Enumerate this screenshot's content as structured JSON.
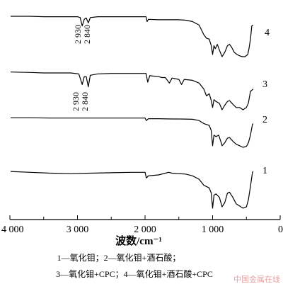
{
  "chart_data": {
    "type": "line",
    "title": "",
    "xlabel": "波数/cm⁻¹",
    "ylabel": "",
    "xlim": [
      4000,
      0
    ],
    "x_ticks": [
      "4 000",
      "3 000",
      "2 000",
      "1 000",
      "0"
    ],
    "x_tick_values": [
      4000,
      3000,
      2000,
      1000,
      0
    ],
    "grid": false,
    "legend": "none",
    "series": [
      {
        "name": "4",
        "peak_labels": [
          "2 930",
          "2 840"
        ],
        "points": [
          [
            3990,
            0.92
          ],
          [
            3700,
            0.92
          ],
          [
            3500,
            0.91
          ],
          [
            3200,
            0.91
          ],
          [
            3000,
            0.91
          ],
          [
            2960,
            0.89
          ],
          [
            2930,
            0.7
          ],
          [
            2900,
            0.85
          ],
          [
            2870,
            0.88
          ],
          [
            2840,
            0.77
          ],
          [
            2810,
            0.89
          ],
          [
            2700,
            0.91
          ],
          [
            2500,
            0.91
          ],
          [
            2300,
            0.91
          ],
          [
            2100,
            0.91
          ],
          [
            1985,
            0.91
          ],
          [
            1970,
            0.8
          ],
          [
            1950,
            0.85
          ],
          [
            1800,
            0.84
          ],
          [
            1600,
            0.84
          ],
          [
            1500,
            0.84
          ],
          [
            1400,
            0.83
          ],
          [
            1300,
            0.8
          ],
          [
            1200,
            0.72
          ],
          [
            1130,
            0.5
          ],
          [
            1090,
            0.42
          ],
          [
            1050,
            0.4
          ],
          [
            1020,
            0.25
          ],
          [
            1000,
            0.05
          ],
          [
            980,
            0.25
          ],
          [
            960,
            0.18
          ],
          [
            930,
            0.28
          ],
          [
            900,
            0.15
          ],
          [
            860,
            0.0
          ],
          [
            820,
            0.1
          ],
          [
            780,
            0.25
          ],
          [
            750,
            0.28
          ],
          [
            720,
            0.22
          ],
          [
            680,
            0.1
          ],
          [
            640,
            0.05
          ],
          [
            600,
            0.02
          ],
          [
            560,
            0.0
          ],
          [
            520,
            0.0
          ],
          [
            480,
            0.05
          ],
          [
            460,
            0.2
          ],
          [
            440,
            0.4
          ],
          [
            420,
            0.7
          ],
          [
            400,
            0.72
          ]
        ]
      },
      {
        "name": "3",
        "peak_labels": [
          "2 930",
          "2 840"
        ],
        "points": [
          [
            3990,
            0.82
          ],
          [
            3700,
            0.81
          ],
          [
            3500,
            0.8
          ],
          [
            3300,
            0.8
          ],
          [
            3100,
            0.8
          ],
          [
            2980,
            0.78
          ],
          [
            2930,
            0.55
          ],
          [
            2900,
            0.72
          ],
          [
            2870,
            0.72
          ],
          [
            2840,
            0.5
          ],
          [
            2810,
            0.75
          ],
          [
            2700,
            0.78
          ],
          [
            2500,
            0.79
          ],
          [
            2300,
            0.79
          ],
          [
            2100,
            0.79
          ],
          [
            1985,
            0.79
          ],
          [
            1960,
            0.6
          ],
          [
            1930,
            0.74
          ],
          [
            1800,
            0.72
          ],
          [
            1750,
            0.7
          ],
          [
            1700,
            0.7
          ],
          [
            1640,
            0.58
          ],
          [
            1600,
            0.69
          ],
          [
            1500,
            0.66
          ],
          [
            1460,
            0.55
          ],
          [
            1420,
            0.66
          ],
          [
            1300,
            0.64
          ],
          [
            1200,
            0.58
          ],
          [
            1130,
            0.45
          ],
          [
            1090,
            0.3
          ],
          [
            1050,
            0.35
          ],
          [
            1020,
            0.2
          ],
          [
            1000,
            0.05
          ],
          [
            980,
            0.22
          ],
          [
            950,
            0.18
          ],
          [
            900,
            0.14
          ],
          [
            860,
            0.0
          ],
          [
            820,
            0.1
          ],
          [
            780,
            0.18
          ],
          [
            750,
            0.2
          ],
          [
            700,
            0.12
          ],
          [
            650,
            0.05
          ],
          [
            600,
            0.05
          ],
          [
            550,
            0.0
          ],
          [
            500,
            0.05
          ],
          [
            470,
            0.15
          ],
          [
            440,
            0.4
          ],
          [
            400,
            0.45
          ]
        ]
      },
      {
        "name": "2",
        "peak_labels": [],
        "points": [
          [
            3990,
            0.97
          ],
          [
            3700,
            0.97
          ],
          [
            3400,
            0.96
          ],
          [
            3100,
            0.96
          ],
          [
            2800,
            0.96
          ],
          [
            2500,
            0.96
          ],
          [
            2200,
            0.96
          ],
          [
            2000,
            0.96
          ],
          [
            1980,
            0.88
          ],
          [
            1950,
            0.94
          ],
          [
            1800,
            0.94
          ],
          [
            1600,
            0.93
          ],
          [
            1500,
            0.93
          ],
          [
            1300,
            0.92
          ],
          [
            1200,
            0.88
          ],
          [
            1130,
            0.78
          ],
          [
            1090,
            0.75
          ],
          [
            1050,
            0.72
          ],
          [
            1020,
            0.55
          ],
          [
            1000,
            0.05
          ],
          [
            980,
            0.4
          ],
          [
            950,
            0.35
          ],
          [
            910,
            0.4
          ],
          [
            880,
            0.2
          ],
          [
            860,
            0.05
          ],
          [
            820,
            0.15
          ],
          [
            780,
            0.3
          ],
          [
            750,
            0.32
          ],
          [
            700,
            0.2
          ],
          [
            650,
            0.1
          ],
          [
            600,
            0.05
          ],
          [
            550,
            0.0
          ],
          [
            500,
            0.03
          ],
          [
            470,
            0.15
          ],
          [
            440,
            0.4
          ],
          [
            410,
            0.75
          ],
          [
            400,
            0.78
          ]
        ]
      },
      {
        "name": "1",
        "peak_labels": [],
        "points": [
          [
            3990,
            0.9
          ],
          [
            3700,
            0.88
          ],
          [
            3400,
            0.86
          ],
          [
            3100,
            0.85
          ],
          [
            2800,
            0.86
          ],
          [
            2500,
            0.87
          ],
          [
            2200,
            0.88
          ],
          [
            2000,
            0.88
          ],
          [
            1980,
            0.75
          ],
          [
            1950,
            0.8
          ],
          [
            1800,
            0.82
          ],
          [
            1650,
            0.88
          ],
          [
            1600,
            0.86
          ],
          [
            1500,
            0.85
          ],
          [
            1400,
            0.84
          ],
          [
            1300,
            0.8
          ],
          [
            1200,
            0.72
          ],
          [
            1130,
            0.58
          ],
          [
            1090,
            0.55
          ],
          [
            1050,
            0.52
          ],
          [
            1020,
            0.4
          ],
          [
            1000,
            0.05
          ],
          [
            980,
            0.35
          ],
          [
            950,
            0.38
          ],
          [
            900,
            0.3
          ],
          [
            860,
            0.08
          ],
          [
            820,
            0.18
          ],
          [
            780,
            0.4
          ],
          [
            750,
            0.42
          ],
          [
            700,
            0.3
          ],
          [
            650,
            0.15
          ],
          [
            600,
            0.1
          ],
          [
            550,
            0.05
          ],
          [
            500,
            0.08
          ],
          [
            470,
            0.25
          ],
          [
            440,
            0.55
          ],
          [
            410,
            0.88
          ],
          [
            400,
            0.9
          ]
        ]
      }
    ]
  },
  "caption": {
    "line1": "1—氧化钼；2—氧化钼+酒石酸；",
    "line2": "3—氧化钼+CPC；4—氧化钼+酒石酸+CPC"
  },
  "watermark": "中国金属在线"
}
